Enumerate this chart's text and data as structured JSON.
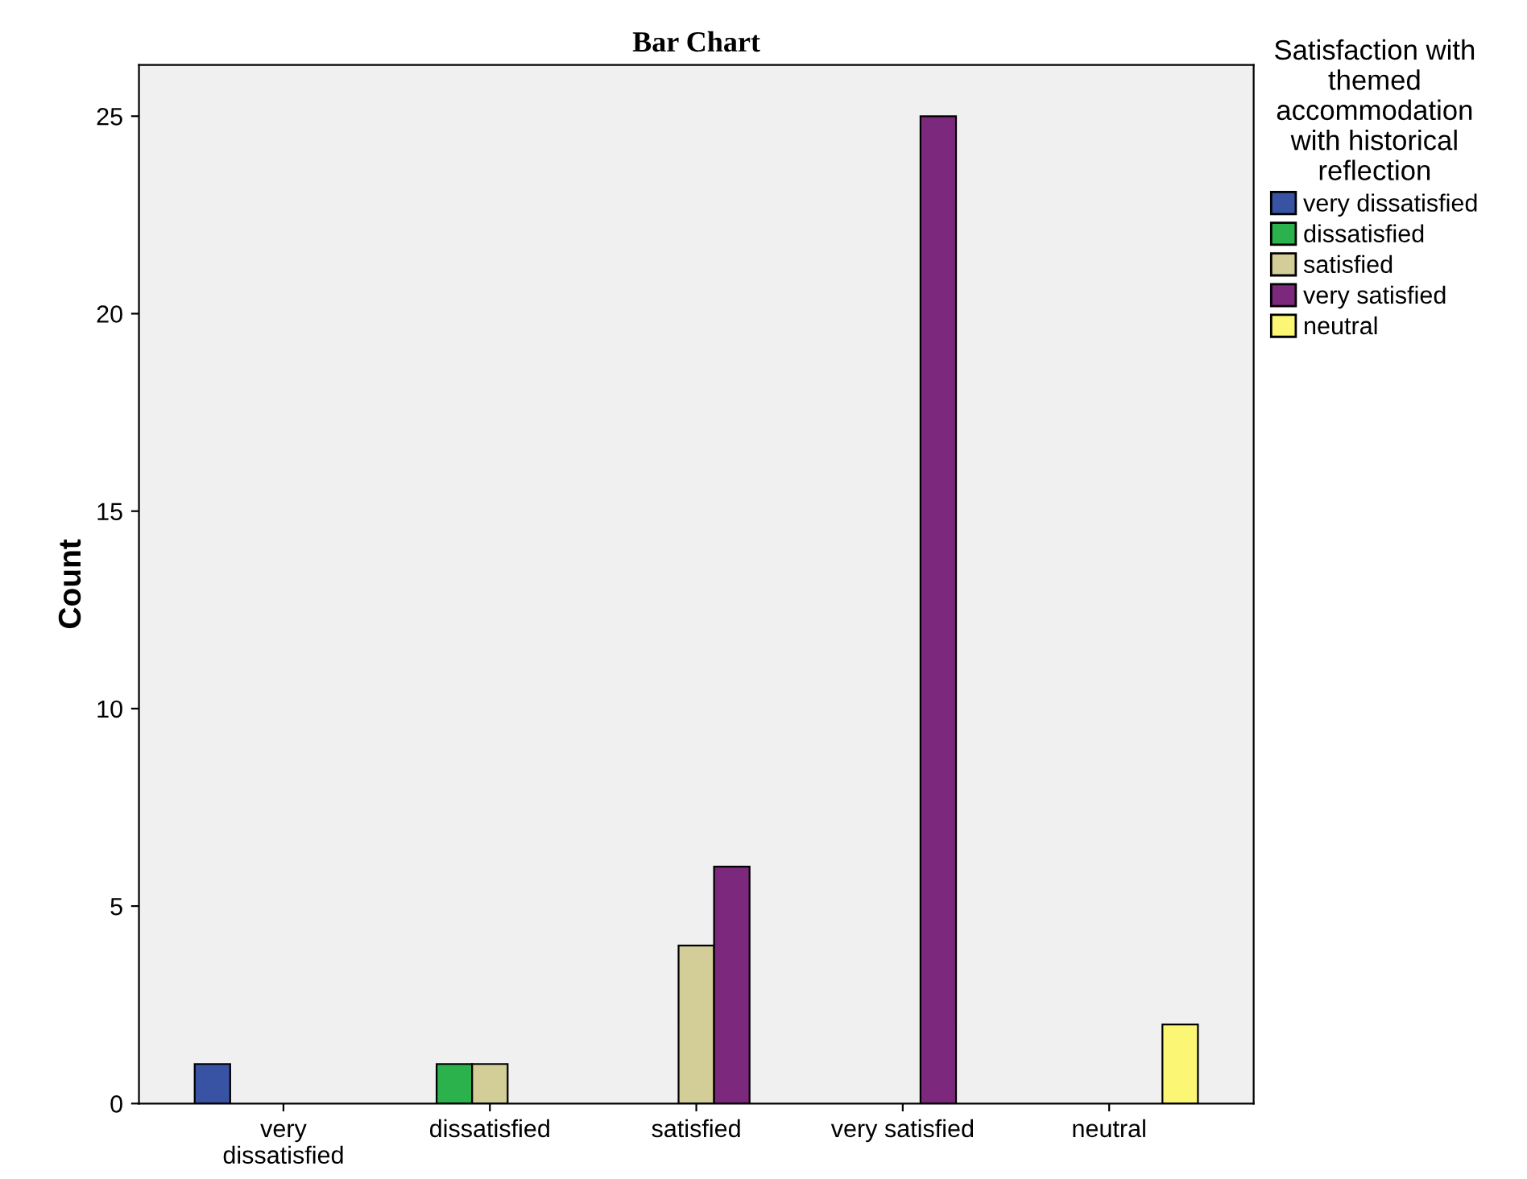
{
  "chart_data": {
    "type": "bar",
    "title": "Bar Chart",
    "ylabel": "Count",
    "legend_title": "Satisfaction with\nthemed\naccommodation\nwith historical\nreflection",
    "categories": [
      "very\ndissatisfied",
      "dissatisfied",
      "satisfied",
      "very satisfied",
      "neutral"
    ],
    "series": [
      {
        "name": "very dissatisfied",
        "color": "#3953a4",
        "values": [
          1,
          null,
          null,
          null,
          null
        ]
      },
      {
        "name": "dissatisfied",
        "color": "#2bb24c",
        "values": [
          null,
          1,
          null,
          null,
          null
        ]
      },
      {
        "name": "satisfied",
        "color": "#d3ce97",
        "values": [
          null,
          1,
          4,
          null,
          null
        ]
      },
      {
        "name": "very satisfied",
        "color": "#7c287d",
        "values": [
          null,
          null,
          6,
          25,
          null
        ]
      },
      {
        "name": "neutral",
        "color": "#fbf774",
        "values": [
          null,
          null,
          null,
          null,
          2
        ]
      }
    ],
    "ylim": [
      0,
      26.3
    ],
    "yticks": [
      0,
      5,
      10,
      15,
      20,
      25
    ],
    "grid": false,
    "legend": "right"
  }
}
